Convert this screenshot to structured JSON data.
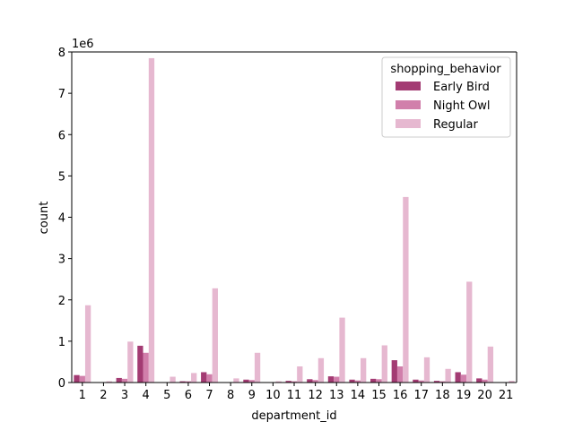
{
  "chart_data": {
    "type": "bar",
    "xlabel": "department_id",
    "ylabel": "count",
    "y_offset_label": "1e6",
    "ylim": [
      0,
      8000000
    ],
    "y_ticks": [
      0,
      1,
      2,
      3,
      4,
      5,
      6,
      7,
      8
    ],
    "y_tick_scale": 1000000,
    "categories": [
      "1",
      "2",
      "3",
      "4",
      "5",
      "6",
      "7",
      "8",
      "9",
      "10",
      "11",
      "12",
      "13",
      "14",
      "15",
      "16",
      "17",
      "18",
      "19",
      "20",
      "21"
    ],
    "legend": {
      "title": "shopping_behavior",
      "position": "top-right"
    },
    "series": [
      {
        "name": "Early Bird",
        "color": "#a33b73",
        "values": [
          180000,
          10000,
          110000,
          890000,
          10000,
          30000,
          250000,
          5000,
          70000,
          5000,
          40000,
          80000,
          150000,
          70000,
          90000,
          540000,
          70000,
          40000,
          250000,
          100000,
          5000
        ]
      },
      {
        "name": "Night Owl",
        "color": "#d17fab",
        "values": [
          160000,
          10000,
          90000,
          720000,
          10000,
          30000,
          200000,
          5000,
          60000,
          5000,
          30000,
          60000,
          140000,
          50000,
          80000,
          390000,
          50000,
          30000,
          190000,
          70000,
          5000
        ]
      },
      {
        "name": "Regular",
        "color": "#e6b8d0",
        "values": [
          1870000,
          30000,
          990000,
          7850000,
          140000,
          230000,
          2280000,
          100000,
          720000,
          30000,
          390000,
          590000,
          1570000,
          590000,
          900000,
          4490000,
          610000,
          330000,
          2440000,
          870000,
          40000
        ]
      }
    ]
  }
}
